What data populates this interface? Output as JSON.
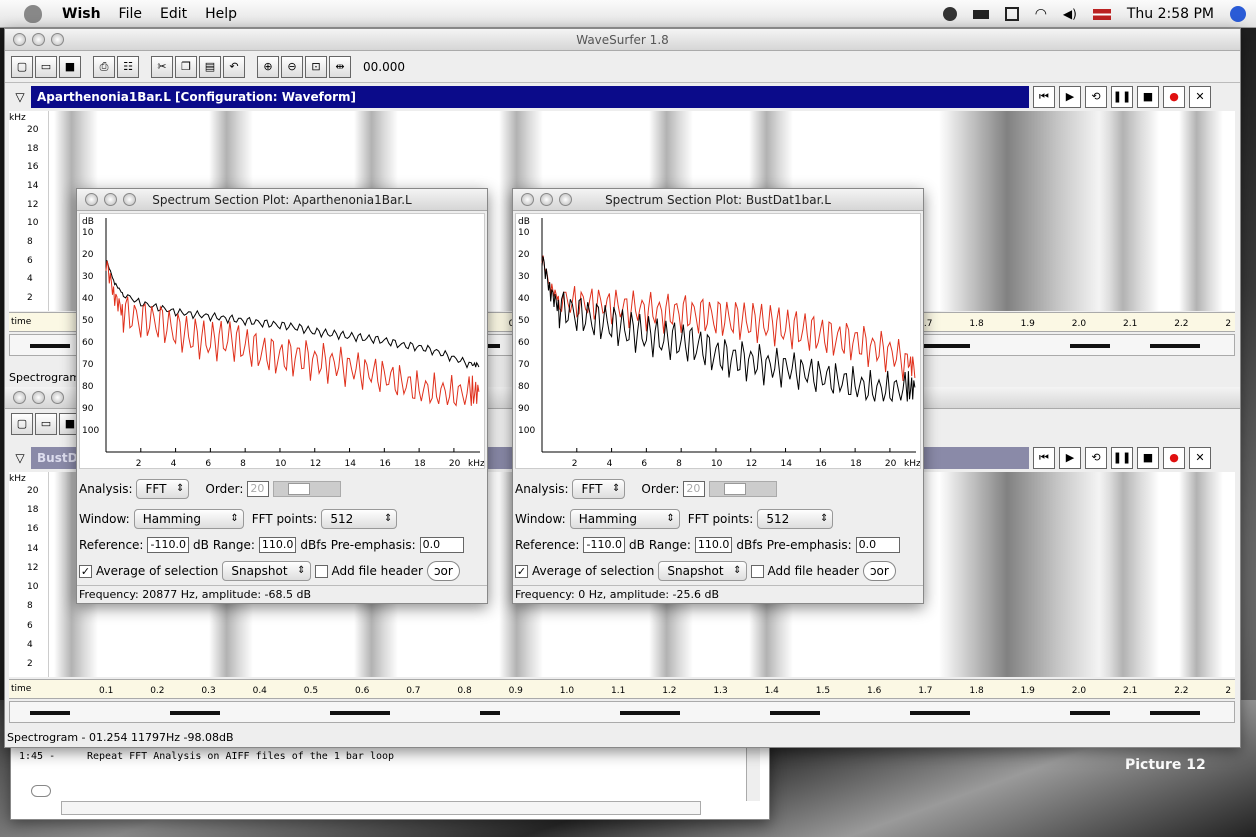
{
  "menubar": {
    "app": "Wish",
    "items": [
      "File",
      "Edit",
      "Help"
    ],
    "clock": "Thu 2:58 PM"
  },
  "main_window": {
    "title": "WaveSurfer 1.8",
    "time_readout": "00.000",
    "track1": {
      "banner": "Aparthenonia1Bar.L  [Configuration: Waveform]",
      "status": "Spectrogram"
    },
    "track2": {
      "banner": "BustDa",
      "status": "Spectrogram - 01.254 11797Hz -98.08dB"
    }
  },
  "khz_label": "kHz",
  "y_ticks": [
    "20",
    "18",
    "16",
    "14",
    "12",
    "10",
    "8",
    "6",
    "4",
    "2"
  ],
  "time_label": "time",
  "time_ticks": [
    "0.1",
    "0.2",
    "0.3",
    "0.4",
    "0.5",
    "0.6",
    "0.7",
    "0.8",
    "0.9",
    "1.0",
    "1.1",
    "1.2",
    "1.3",
    "1.4",
    "1.5",
    "1.6",
    "1.7",
    "1.8",
    "1.9",
    "2.0",
    "2.1",
    "2.2",
    "2"
  ],
  "notes": {
    "time": "1:45 -",
    "text": "Repeat FFT Analysis on AIFF files of the 1 bar loop"
  },
  "desktop_label": "Picture 12",
  "spectrum1": {
    "title": "Spectrum Section Plot: Aparthenonia1Bar.L",
    "analysis": "FFT",
    "order": "20",
    "window": "Hamming",
    "fft_points": "512",
    "reference": "-110.0",
    "range": "110.0",
    "pre_emphasis": "0.0",
    "average_label": "Average of selection",
    "snapshot": "Snapshot",
    "add_file_header": "Add file header",
    "export": "ɔor",
    "status": "Frequency: 20877 Hz, amplitude: -68.5 dB"
  },
  "spectrum2": {
    "title": "Spectrum Section Plot: BustDat1bar.L",
    "analysis": "FFT",
    "order": "20",
    "window": "Hamming",
    "fft_points": "512",
    "reference": "-110.0",
    "range": "110.0",
    "pre_emphasis": "0.0",
    "average_label": "Average of selection",
    "snapshot": "Snapshot",
    "add_file_header": "Add file header",
    "export": "ɔor",
    "status": "Frequency: 0 Hz, amplitude: -25.6 dB"
  },
  "labels": {
    "analysis": "Analysis:",
    "order": "Order:",
    "window": "Window:",
    "fft_points": "FFT points:",
    "reference": "Reference:",
    "db": "dB",
    "range": "Range:",
    "dbfs": "dBfs",
    "pre_emphasis": "Pre-emphasis:"
  },
  "db_label": "dB",
  "db_ticks": [
    "10",
    "20",
    "30",
    "40",
    "50",
    "60",
    "70",
    "80",
    "90",
    "100"
  ],
  "khz_ticks": [
    "2",
    "4",
    "6",
    "8",
    "10",
    "12",
    "14",
    "16",
    "18",
    "20",
    "kHz"
  ],
  "chart_data": [
    {
      "type": "line",
      "xlabel": "kHz",
      "ylabel": "dB",
      "ylim": [
        10,
        110
      ],
      "xlim": [
        0,
        21.5
      ],
      "series": [
        {
          "color": "#000000",
          "x": [
            0,
            0.5,
            1,
            2,
            3,
            4,
            5,
            6,
            7,
            8,
            9,
            10,
            11,
            12,
            13,
            14,
            15,
            16,
            17,
            18,
            19,
            20,
            21,
            21.5
          ],
          "y": [
            22,
            33,
            38,
            42,
            44,
            46,
            47,
            48,
            49,
            50,
            51,
            52,
            53,
            55,
            56,
            57,
            58,
            59,
            61,
            62,
            64,
            67,
            70,
            70
          ]
        },
        {
          "color": "#e0301c",
          "x": [
            0,
            0.5,
            1,
            2,
            3,
            4,
            5,
            6,
            7,
            8,
            9,
            10,
            11,
            12,
            13,
            14,
            15,
            16,
            17,
            18,
            19,
            20,
            21,
            21.5
          ],
          "y": [
            22,
            38,
            45,
            48,
            49,
            53,
            56,
            58,
            57,
            60,
            63,
            65,
            65,
            67,
            68,
            70,
            72,
            74,
            77,
            80,
            81,
            82,
            82,
            81
          ]
        }
      ]
    },
    {
      "type": "line",
      "xlabel": "kHz",
      "ylabel": "dB",
      "ylim": [
        10,
        110
      ],
      "xlim": [
        0,
        21.5
      ],
      "series": [
        {
          "color": "#e0301c",
          "x": [
            0,
            0.5,
            1,
            2,
            3,
            4,
            5,
            6,
            7,
            8,
            9,
            10,
            11,
            12,
            13,
            14,
            15,
            16,
            17,
            18,
            19,
            20,
            21,
            21.5
          ],
          "y": [
            20,
            34,
            39,
            41,
            41,
            42,
            43,
            44,
            45,
            45,
            46,
            47,
            48,
            49,
            50,
            52,
            53,
            55,
            57,
            58,
            61,
            63,
            68,
            70
          ]
        },
        {
          "color": "#000000",
          "x": [
            0,
            0.5,
            1,
            2,
            3,
            4,
            5,
            6,
            7,
            8,
            9,
            10,
            11,
            12,
            13,
            14,
            15,
            16,
            17,
            18,
            19,
            20,
            21,
            21.5
          ],
          "y": [
            20,
            36,
            43,
            45,
            48,
            50,
            53,
            55,
            57,
            58,
            60,
            64,
            66,
            67,
            69,
            70,
            72,
            74,
            76,
            78,
            80,
            80,
            80,
            79
          ]
        }
      ]
    }
  ]
}
